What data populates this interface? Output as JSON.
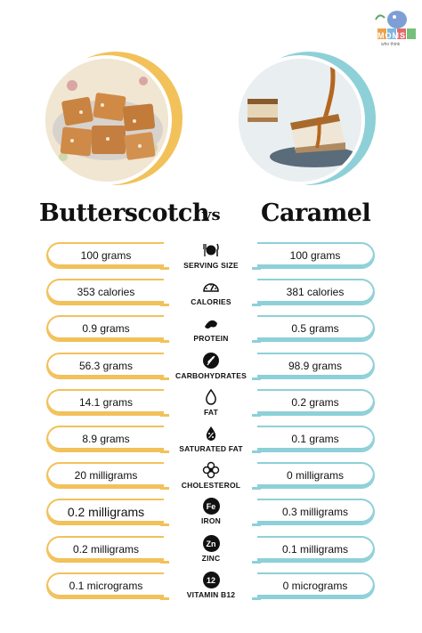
{
  "logo": {
    "text": "MOMS",
    "tagline": "who think"
  },
  "header": {
    "left_title": "Butterscotch",
    "vs": "vs",
    "right_title": "Caramel"
  },
  "colors": {
    "left_accent": "#f2c15a",
    "right_accent": "#8ed0d8"
  },
  "rows": [
    {
      "label": "SERVING SIZE",
      "icon": "utensils-icon",
      "left": "100 grams",
      "right": "100 grams"
    },
    {
      "label": "CALORIES",
      "icon": "gauge-icon",
      "left": "353 calories",
      "right": "381 calories"
    },
    {
      "label": "PROTEIN",
      "icon": "protein-icon",
      "left": "0.9 grams",
      "right": "0.5 grams"
    },
    {
      "label": "CARBOHYDRATES",
      "icon": "wheat-icon",
      "left": "56.3 grams",
      "right": "98.9 grams"
    },
    {
      "label": "FAT",
      "icon": "droplet-icon",
      "left": "14.1 grams",
      "right": "0.2 grams"
    },
    {
      "label": "SATURATED FAT",
      "icon": "percent-drop-icon",
      "left": "8.9 grams",
      "right": "0.1 grams"
    },
    {
      "label": "CHOLESTEROL",
      "icon": "flower-icon",
      "left": "20 milligrams",
      "right": "0 milligrams"
    },
    {
      "label": "IRON",
      "icon": "fe-badge-icon",
      "badge": "Fe",
      "left": "0.2 milligrams",
      "right": "0.3 milligrams"
    },
    {
      "label": "ZINC",
      "icon": "zn-badge-icon",
      "badge": "Zn",
      "left": "0.2 milligrams",
      "right": "0.1 milligrams"
    },
    {
      "label": "VITAMIN B12",
      "icon": "b12-badge-icon",
      "badge": "12",
      "left": "0.1 micrograms",
      "right": "0 micrograms"
    }
  ]
}
